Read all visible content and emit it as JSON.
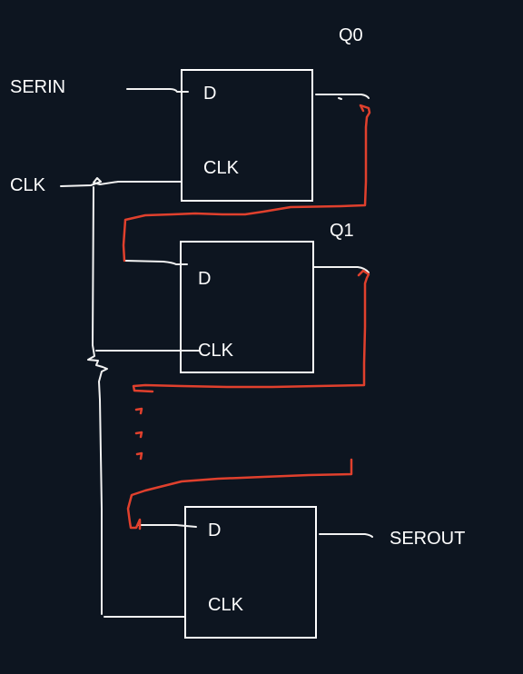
{
  "labels": {
    "serin": "SERIN",
    "clk_input": "CLK",
    "q0": "Q0",
    "q1": "Q1",
    "serout": "SEROUT"
  },
  "flipflops": [
    {
      "d": "D",
      "clk": "CLK"
    },
    {
      "d": "D",
      "clk": "CLK"
    },
    {
      "d": "D",
      "clk": "CLK"
    }
  ],
  "colors": {
    "background": "#0d1520",
    "wire": "#f2f2f2",
    "feedback_wire": "#e0402d"
  }
}
